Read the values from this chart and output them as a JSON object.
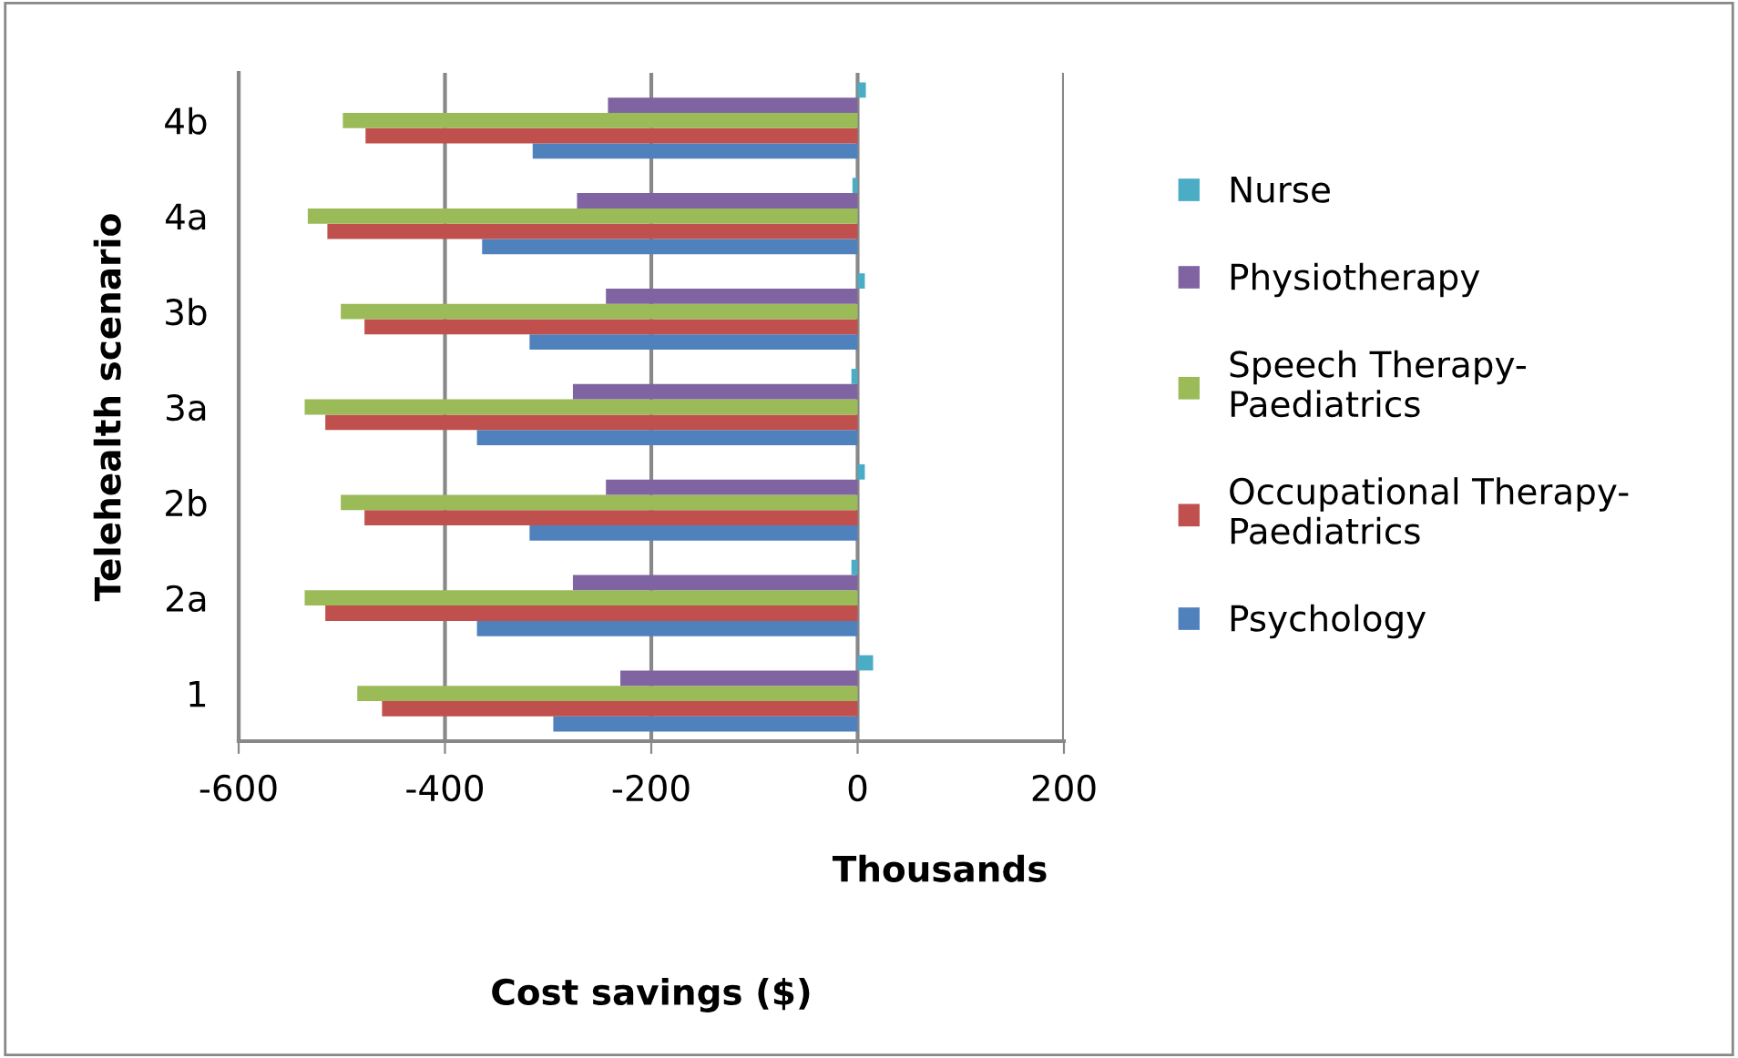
{
  "chart_data": {
    "type": "bar",
    "orientation": "horizontal",
    "categories": [
      "4b",
      "4a",
      "3b",
      "3a",
      "2b",
      "2a",
      "1"
    ],
    "series": [
      {
        "name": "Psychology",
        "color": "#4f81bd",
        "values": [
          -315,
          -364,
          -318,
          -369,
          -318,
          -369,
          -295
        ]
      },
      {
        "name": "Occupational Therapy-\nPaediatrics",
        "color": "#c0504d",
        "values": [
          -477,
          -514,
          -478,
          -516,
          -478,
          -516,
          -461
        ]
      },
      {
        "name": "Speech Therapy-\nPaediatrics",
        "color": "#9bbb59",
        "values": [
          -499,
          -533,
          -501,
          -536,
          -501,
          -536,
          -485
        ]
      },
      {
        "name": "Physiotherapy",
        "color": "#8064a2",
        "values": [
          -242,
          -272,
          -244,
          -276,
          -244,
          -276,
          -230
        ]
      },
      {
        "name": "Nurse",
        "color": "#4bacc6",
        "values": [
          8,
          -5,
          7,
          -6,
          7,
          -6,
          15
        ]
      }
    ],
    "xlim": [
      -600,
      200
    ],
    "xticks": [
      -600,
      -400,
      -200,
      0,
      200
    ],
    "xlabel": "Thousands",
    "ylabel": "Telehealth scenario",
    "annotations": [
      "Cost savings ($)"
    ],
    "grid": "x",
    "legend": "right"
  }
}
